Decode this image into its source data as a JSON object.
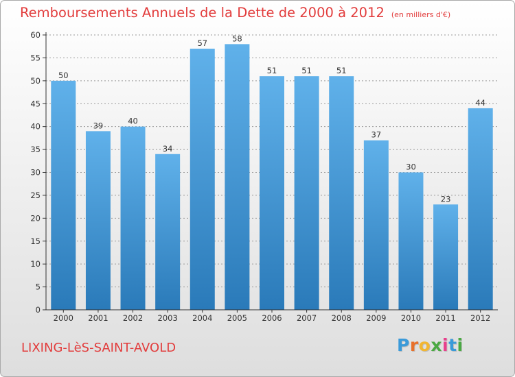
{
  "title": "Remboursements Annuels de la Dette de 2000 à 2012",
  "unit_label": "(en milliers d'€)",
  "commune": "LIXING-LèS-SAINT-AVOLD",
  "brand": {
    "text": "Proxiti",
    "colors": [
      "#3a9ad9",
      "#e8702a",
      "#f2b632",
      "#49a942",
      "#e83e8c",
      "#3a9ad9",
      "#49a942"
    ]
  },
  "colors": {
    "title": "#e23c3c",
    "bar_top": "#60b1ea",
    "bar_bottom": "#2a7ab9",
    "axis": "#333333",
    "grid": "#999999"
  },
  "chart_data": {
    "type": "bar",
    "categories": [
      "2000",
      "2001",
      "2002",
      "2003",
      "2004",
      "2005",
      "2006",
      "2007",
      "2008",
      "2009",
      "2010",
      "2011",
      "2012"
    ],
    "values": [
      50,
      39,
      40,
      34,
      57,
      58,
      51,
      51,
      51,
      37,
      30,
      23,
      44
    ],
    "ylim": [
      0,
      60
    ],
    "yticks": [
      0,
      5,
      10,
      15,
      20,
      25,
      30,
      35,
      40,
      45,
      50,
      55,
      60
    ],
    "grid": "dashed-horizontal"
  }
}
